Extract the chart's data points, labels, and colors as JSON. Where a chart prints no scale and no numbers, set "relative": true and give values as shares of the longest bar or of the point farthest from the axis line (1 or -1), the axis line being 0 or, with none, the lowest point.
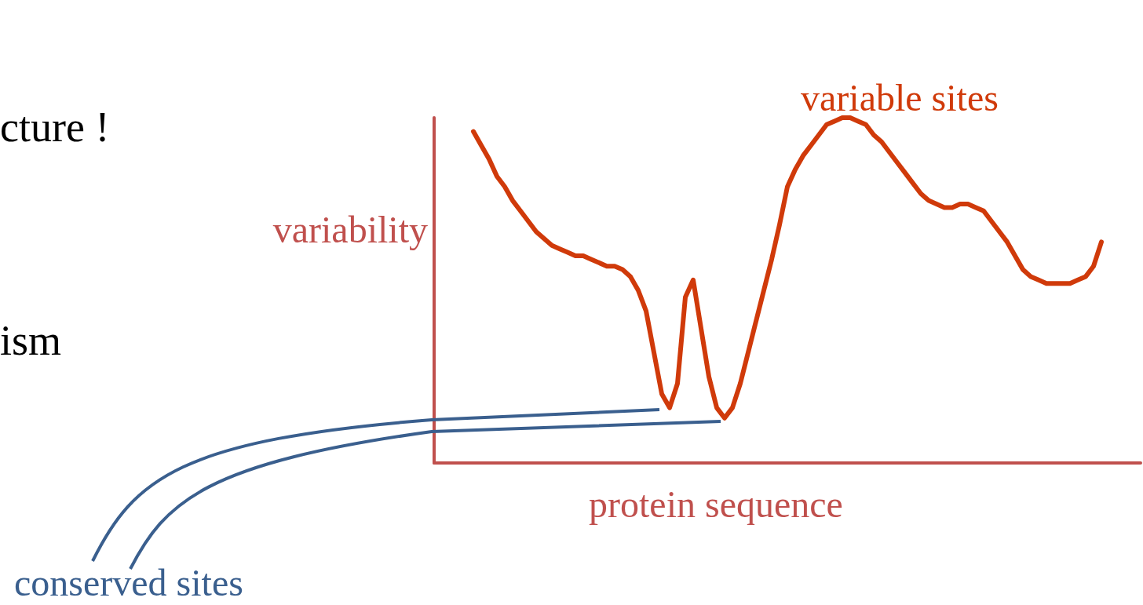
{
  "chart_data": {
    "type": "line",
    "relative": true,
    "xlabel": "protein sequence",
    "ylabel": "variability",
    "annotations": [
      "variable sites",
      "conserved sites",
      "cture !",
      "ism"
    ],
    "categories": [
      null,
      null,
      null,
      null,
      null,
      null,
      null,
      null,
      null,
      null,
      null,
      null,
      null,
      null,
      null,
      null,
      null,
      null,
      null,
      null,
      null,
      null,
      null,
      null,
      null,
      null,
      null,
      null,
      null,
      null,
      null,
      null,
      null,
      null,
      null,
      null,
      null,
      null,
      null,
      null,
      null,
      null,
      null,
      null,
      null,
      null,
      null,
      null,
      null,
      null,
      null,
      null,
      null,
      null,
      null,
      null,
      null,
      null,
      null,
      null,
      null,
      null,
      null,
      null,
      null,
      null,
      null,
      null,
      null,
      null,
      null,
      null,
      null,
      null,
      null,
      null,
      null,
      null,
      null,
      null,
      null,
      null,
      null,
      null,
      null,
      null,
      null,
      null,
      null,
      null,
      null
    ],
    "series": [
      {
        "color": "#d03a0a",
        "values": [
          null,
          null,
          null,
          null,
          null,
          0.96,
          0.92,
          0.88,
          0.83,
          0.8,
          0.76,
          0.73,
          0.7,
          0.67,
          0.65,
          0.63,
          0.62,
          0.61,
          0.6,
          0.6,
          0.59,
          0.58,
          0.57,
          0.57,
          0.56,
          0.54,
          0.5,
          0.44,
          0.32,
          0.2,
          0.16,
          0.23,
          0.48,
          0.53,
          0.39,
          0.25,
          0.16,
          0.13,
          0.16,
          0.23,
          0.32,
          0.41,
          0.5,
          0.59,
          0.69,
          0.8,
          0.85,
          0.89,
          0.92,
          0.95,
          0.98,
          0.99,
          1,
          1,
          0.99,
          0.98,
          0.95,
          0.93,
          0.9,
          0.87,
          0.84,
          0.81,
          0.78,
          0.76,
          0.75,
          0.74,
          0.74,
          0.75,
          0.75,
          0.74,
          0.73,
          0.7,
          0.67,
          0.64,
          0.6,
          0.56,
          0.54,
          0.53,
          0.52,
          0.52,
          0.52,
          0.52,
          0.53,
          0.54,
          0.57,
          0.64,
          null,
          null,
          null,
          null,
          null
        ]
      }
    ],
    "marker": "none"
  }
}
